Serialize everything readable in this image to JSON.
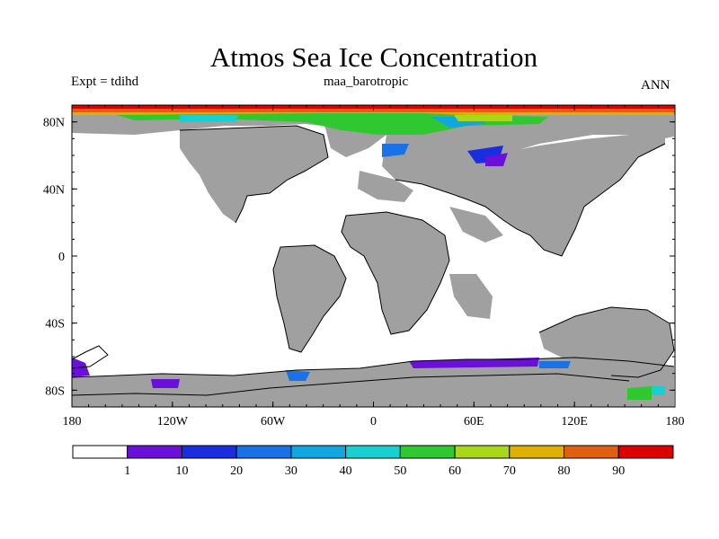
{
  "title": "Atmos Sea Ice Concentration",
  "left_label": "Expt = tdihd",
  "center_label": "maa_barotropic",
  "right_label": "ANN",
  "map": {
    "projection": "cylindrical equidistant",
    "lon_range": [
      -180,
      180
    ],
    "lat_range": [
      -90,
      90
    ],
    "land_color": "#a0a0a0",
    "ocean_color": "#ffffff",
    "lon_ticks": [
      {
        "value": -180,
        "label": "180"
      },
      {
        "value": -120,
        "label": "120W"
      },
      {
        "value": -60,
        "label": "60W"
      },
      {
        "value": 0,
        "label": "0"
      },
      {
        "value": 60,
        "label": "60E"
      },
      {
        "value": 120,
        "label": "120E"
      },
      {
        "value": 180,
        "label": "180"
      }
    ],
    "lat_ticks": [
      {
        "value": 80,
        "label": "80N"
      },
      {
        "value": 40,
        "label": "40N"
      },
      {
        "value": 0,
        "label": "0"
      },
      {
        "value": -40,
        "label": "40S"
      },
      {
        "value": -80,
        "label": "80S"
      }
    ]
  },
  "colorbar": {
    "colors": [
      "#ffffff",
      "#6a10d8",
      "#1a2ee0",
      "#1a72e6",
      "#10a6e0",
      "#18d0d0",
      "#30c830",
      "#a8d818",
      "#e0b000",
      "#e06010",
      "#dc0000"
    ],
    "labels": [
      "1",
      "10",
      "20",
      "30",
      "40",
      "50",
      "60",
      "70",
      "80",
      "90"
    ]
  }
}
